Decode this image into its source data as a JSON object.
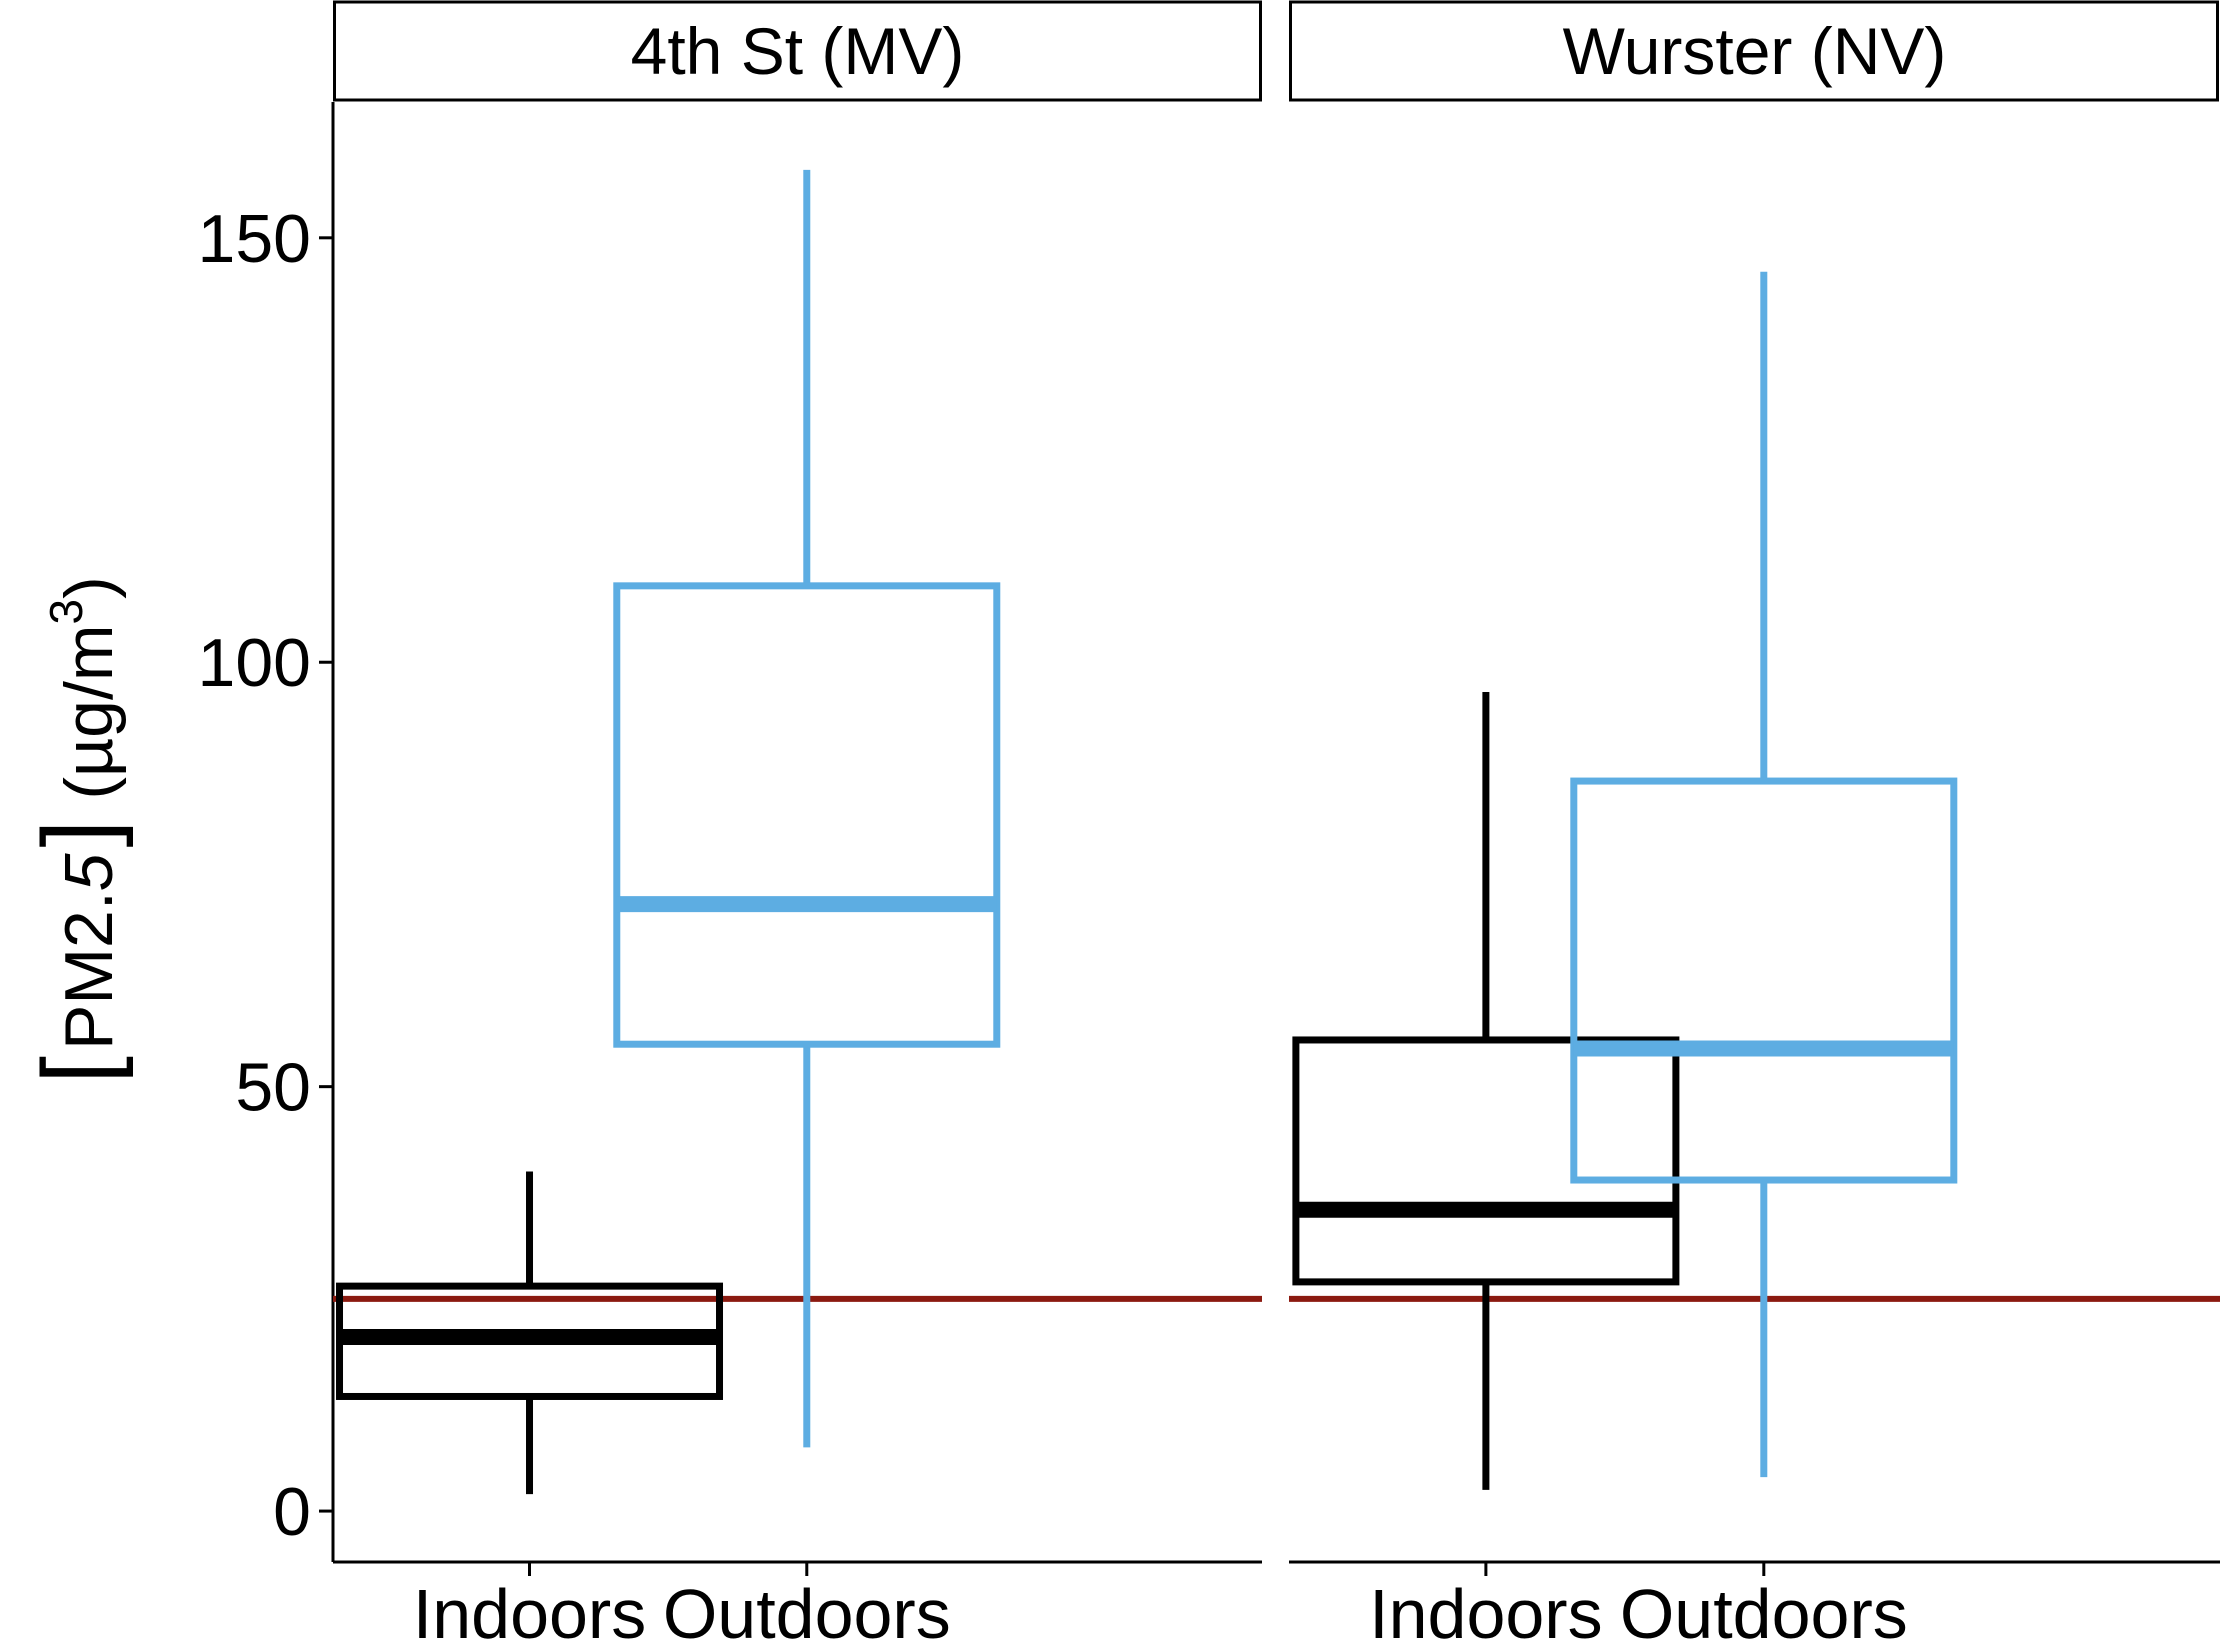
{
  "chart_data": {
    "type": "boxplot",
    "panels": [
      {
        "title": "4th St (MV)",
        "boxes": [
          {
            "category": "Indoors",
            "min": 2,
            "q1": 13.5,
            "median": 20.5,
            "q3": 26.5,
            "max": 40
          },
          {
            "category": "Outdoors",
            "min": 7.5,
            "q1": 55,
            "median": 71.5,
            "q3": 109,
            "max": 158
          }
        ]
      },
      {
        "title": "Wurster (NV)",
        "boxes": [
          {
            "category": "Indoors",
            "min": 2.5,
            "q1": 27,
            "median": 35.5,
            "q3": 55.5,
            "max": 96.5
          },
          {
            "category": "Outdoors",
            "min": 4,
            "q1": 39,
            "median": 54.5,
            "q3": 86,
            "max": 146
          }
        ]
      }
    ],
    "categories": [
      "Indoors",
      "Outdoors"
    ],
    "category_colors": {
      "Indoors": "#000000",
      "Outdoors": "#5DADE2"
    },
    "reference_line": {
      "value": 25,
      "color": "#8B1A10"
    },
    "ylim": [
      -6,
      166
    ],
    "yticks": [
      0,
      50,
      100,
      150
    ],
    "ylabel": {
      "bracket_open": "[",
      "main": "PM2.",
      "italic": "5",
      "bracket_close": "]",
      "unit_open": "(µg/m",
      "unit_sup": "3",
      "unit_close": ")"
    },
    "grid": false,
    "legend": "none"
  }
}
